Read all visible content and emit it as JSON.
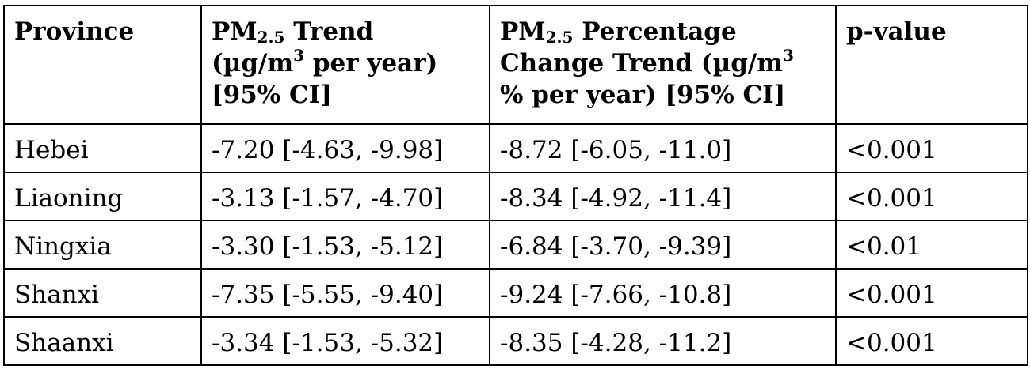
{
  "table": {
    "headers": {
      "province": "Province",
      "trend": {
        "pre": "PM",
        "sub": "2.5",
        "line1_rest": " Trend",
        "line2_pre": "(µg/m",
        "line2_sup": "3",
        "line2_post": " per year)",
        "line3": "[95% CI]"
      },
      "pct": {
        "pre": "PM",
        "sub": "2.5",
        "line1_rest": " Percentage",
        "line2_pre": "Change Trend (µg/m",
        "line2_sup": "3",
        "line3": "% per year) [95% CI]"
      },
      "pvalue": "p-value"
    },
    "rows": [
      {
        "province": "Hebei",
        "trend": "-7.20 [-4.63, -9.98]",
        "pct": "-8.72 [-6.05, -11.0]",
        "p": "<0.001"
      },
      {
        "province": "Liaoning",
        "trend": "-3.13 [-1.57, -4.70]",
        "pct": "-8.34 [-4.92, -11.4]",
        "p": "<0.001"
      },
      {
        "province": "Ningxia",
        "trend": "-3.30 [-1.53, -5.12]",
        "pct": "-6.84 [-3.70, -9.39]",
        "p": "<0.01"
      },
      {
        "province": "Shanxi",
        "trend": "-7.35 [-5.55, -9.40]",
        "pct": "-9.24 [-7.66, -10.8]",
        "p": "<0.001"
      },
      {
        "province": "Shaanxi",
        "trend": "-3.34 [-1.53, -5.32]",
        "pct": "-8.35 [-4.28, -11.2]",
        "p": "<0.001"
      }
    ]
  }
}
